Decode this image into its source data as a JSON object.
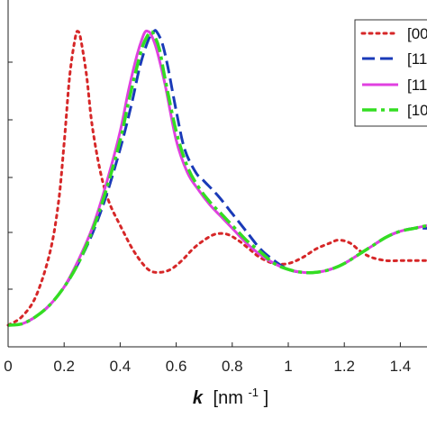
{
  "chart_data": {
    "type": "line",
    "xlabel_symbol": "k",
    "xlabel_unit": "[nm",
    "xlabel_exp": "-1",
    "xlabel_close": "]",
    "xlim": [
      0,
      1.5
    ],
    "ylim": [
      0,
      1.1
    ],
    "x_ticks": [
      0,
      0.2,
      0.4,
      0.6,
      0.8,
      1,
      1.2,
      1.4
    ],
    "x_tick_labels": [
      "0",
      "0.2",
      "0.4",
      "0.6",
      "0.8",
      "1",
      "1.2",
      "1.4"
    ],
    "legend_position": "top-right",
    "series": [
      {
        "name": "[00",
        "color": "#d62728",
        "dash": "dotted",
        "x": [
          0,
          0.05,
          0.1,
          0.15,
          0.18,
          0.2,
          0.22,
          0.24,
          0.25,
          0.26,
          0.28,
          0.3,
          0.33,
          0.36,
          0.4,
          0.45,
          0.5,
          0.54,
          0.58,
          0.62,
          0.66,
          0.7,
          0.74,
          0.78,
          0.82,
          0.86,
          0.9,
          0.95,
          1.0,
          1.05,
          1.1,
          1.15,
          1.18,
          1.22,
          1.26,
          1.3,
          1.35,
          1.4,
          1.45,
          1.5
        ],
        "y": [
          0.0,
          0.03,
          0.1,
          0.25,
          0.42,
          0.62,
          0.85,
          0.98,
          1.0,
          0.97,
          0.85,
          0.68,
          0.52,
          0.42,
          0.34,
          0.25,
          0.19,
          0.18,
          0.19,
          0.22,
          0.26,
          0.29,
          0.31,
          0.31,
          0.29,
          0.26,
          0.23,
          0.21,
          0.21,
          0.23,
          0.26,
          0.28,
          0.29,
          0.28,
          0.25,
          0.23,
          0.22,
          0.22,
          0.22,
          0.22
        ]
      },
      {
        "name": "[11",
        "color": "#1a3ab8",
        "dash": "dashed",
        "x": [
          0,
          0.05,
          0.1,
          0.15,
          0.2,
          0.25,
          0.3,
          0.35,
          0.4,
          0.44,
          0.47,
          0.5,
          0.52,
          0.53,
          0.55,
          0.57,
          0.6,
          0.63,
          0.67,
          0.7,
          0.75,
          0.8,
          0.85,
          0.9,
          0.95,
          1.0,
          1.05,
          1.1,
          1.15,
          1.2,
          1.25,
          1.3,
          1.35,
          1.4,
          1.45,
          1.5
        ],
        "y": [
          0.0,
          0.005,
          0.03,
          0.07,
          0.13,
          0.21,
          0.31,
          0.44,
          0.6,
          0.75,
          0.88,
          0.97,
          1.0,
          1.0,
          0.96,
          0.88,
          0.73,
          0.6,
          0.52,
          0.49,
          0.44,
          0.38,
          0.32,
          0.26,
          0.22,
          0.19,
          0.18,
          0.18,
          0.19,
          0.21,
          0.24,
          0.27,
          0.3,
          0.32,
          0.33,
          0.33
        ]
      },
      {
        "name": "[11",
        "color": "#e040e0",
        "dash": "solid",
        "x": [
          0,
          0.05,
          0.1,
          0.15,
          0.2,
          0.25,
          0.3,
          0.35,
          0.4,
          0.43,
          0.46,
          0.48,
          0.49,
          0.5,
          0.51,
          0.53,
          0.56,
          0.6,
          0.64,
          0.68,
          0.72,
          0.76,
          0.8,
          0.85,
          0.9,
          0.95,
          1.0,
          1.05,
          1.1,
          1.15,
          1.2,
          1.25,
          1.3,
          1.35,
          1.4,
          1.45,
          1.5
        ],
        "y": [
          0.0,
          0.005,
          0.03,
          0.07,
          0.13,
          0.22,
          0.33,
          0.48,
          0.66,
          0.8,
          0.92,
          0.98,
          1.0,
          1.0,
          0.99,
          0.94,
          0.82,
          0.63,
          0.52,
          0.46,
          0.41,
          0.37,
          0.33,
          0.28,
          0.24,
          0.21,
          0.19,
          0.18,
          0.18,
          0.19,
          0.21,
          0.24,
          0.27,
          0.3,
          0.32,
          0.33,
          0.34
        ]
      },
      {
        "name": "[10",
        "color": "#33dd22",
        "dash": "dashdot",
        "x": [
          0,
          0.05,
          0.1,
          0.15,
          0.2,
          0.25,
          0.3,
          0.35,
          0.4,
          0.43,
          0.46,
          0.48,
          0.5,
          0.51,
          0.52,
          0.54,
          0.56,
          0.6,
          0.64,
          0.68,
          0.72,
          0.76,
          0.8,
          0.85,
          0.9,
          0.95,
          1.0,
          1.05,
          1.1,
          1.15,
          1.2,
          1.25,
          1.3,
          1.35,
          1.4,
          1.45,
          1.5
        ],
        "y": [
          0.0,
          0.005,
          0.03,
          0.07,
          0.13,
          0.21,
          0.32,
          0.46,
          0.63,
          0.76,
          0.88,
          0.95,
          0.99,
          1.0,
          0.99,
          0.94,
          0.84,
          0.66,
          0.54,
          0.47,
          0.42,
          0.38,
          0.34,
          0.29,
          0.25,
          0.21,
          0.19,
          0.18,
          0.18,
          0.19,
          0.21,
          0.24,
          0.27,
          0.3,
          0.32,
          0.33,
          0.34
        ]
      }
    ]
  }
}
